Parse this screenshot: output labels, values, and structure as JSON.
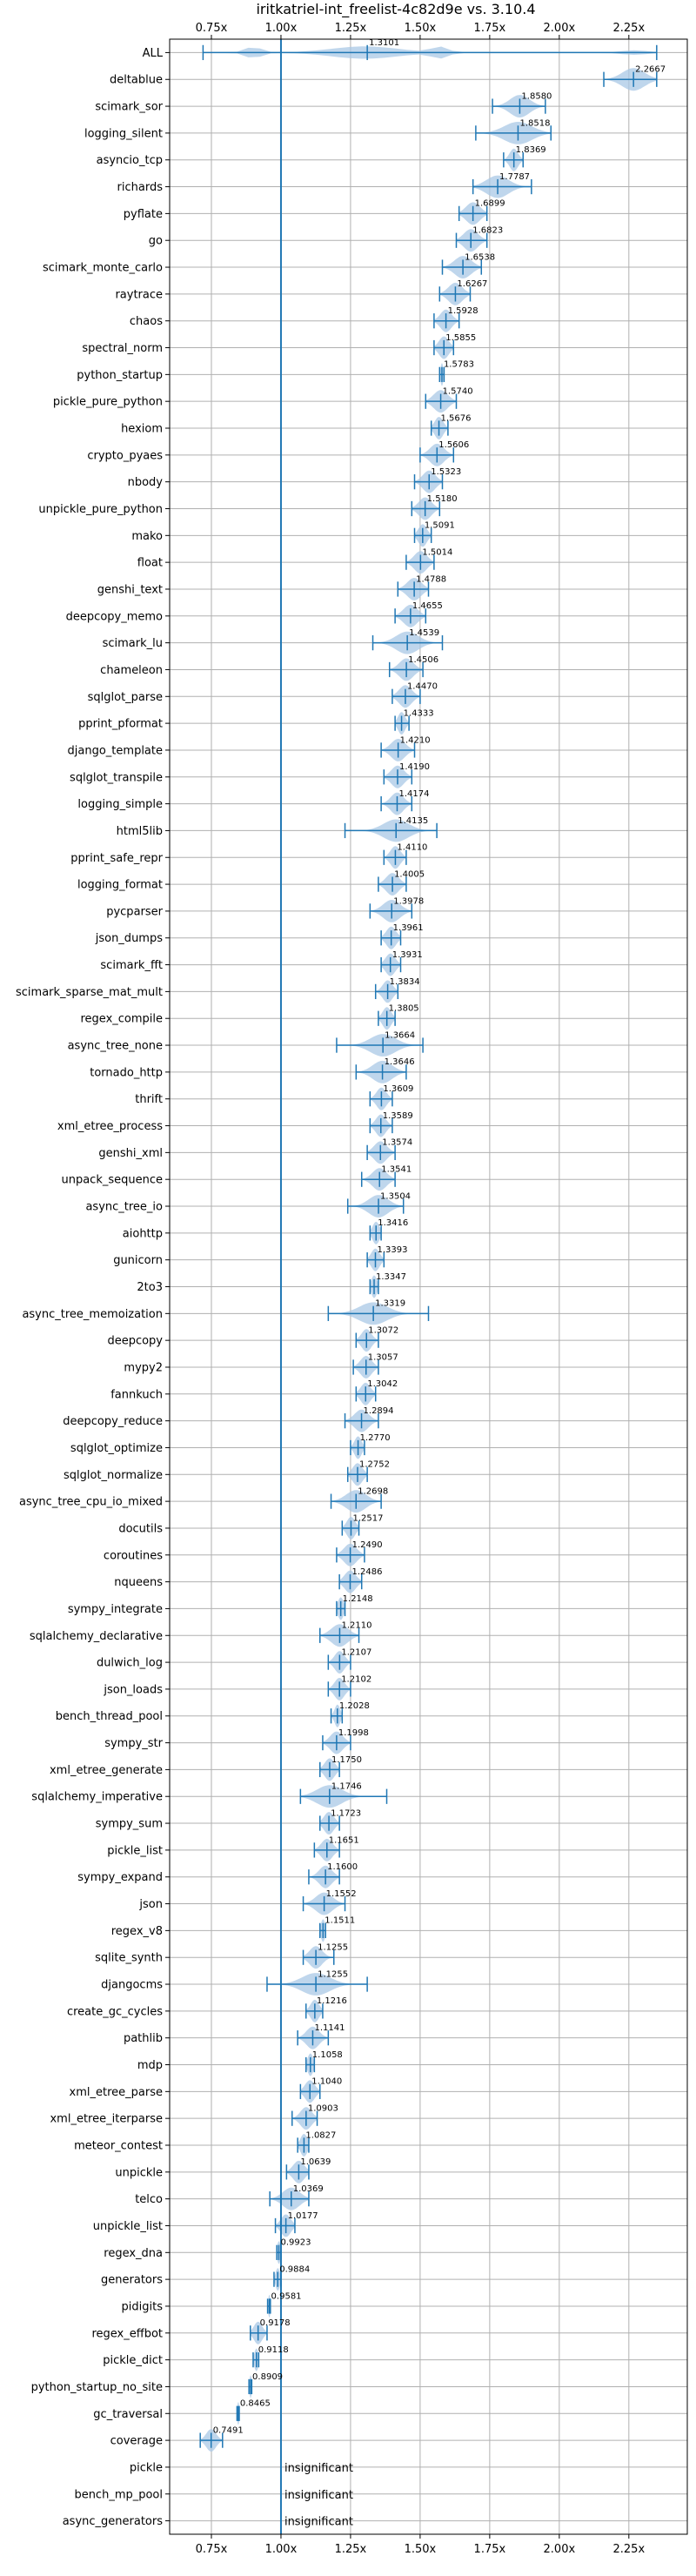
{
  "chart_data": {
    "type": "violin",
    "title": "iritkatriel-int_freelist-4c82d9e vs. 3.10.4",
    "xlabel": "",
    "ylabel": "",
    "xlim": [
      0.6,
      2.46
    ],
    "x_ticks": [
      0.75,
      1.0,
      1.25,
      1.5,
      1.75,
      2.0,
      2.25
    ],
    "x_tick_labels": [
      "0.75x",
      "1.00x",
      "1.25x",
      "1.50x",
      "1.75x",
      "2.00x",
      "2.25x"
    ],
    "reference_line": 1.0,
    "grid": true,
    "colors": {
      "violin": "#aac8e6",
      "errorbar": "#1f77b4",
      "reference": "#1f77b4",
      "grid": "#b0b0b0"
    },
    "benchmarks": [
      {
        "name": "ALL",
        "label": "1.3101",
        "value": 1.3101,
        "min": 0.72,
        "max": 2.35,
        "spread": 0.25
      },
      {
        "name": "deltablue",
        "label": "2.2667",
        "value": 2.2667,
        "min": 2.16,
        "max": 2.35,
        "spread": 0.08
      },
      {
        "name": "scimark_sor",
        "label": "1.8580",
        "value": 1.858,
        "min": 1.76,
        "max": 1.95,
        "spread": 0.07
      },
      {
        "name": "logging_silent",
        "label": "1.8518",
        "value": 1.8518,
        "min": 1.7,
        "max": 1.97,
        "spread": 0.1
      },
      {
        "name": "asyncio_tcp",
        "label": "1.8369",
        "value": 1.8369,
        "min": 1.8,
        "max": 1.87,
        "spread": 0.03
      },
      {
        "name": "richards",
        "label": "1.7787",
        "value": 1.7787,
        "min": 1.69,
        "max": 1.9,
        "spread": 0.08
      },
      {
        "name": "pyflate",
        "label": "1.6899",
        "value": 1.6899,
        "min": 1.64,
        "max": 1.74,
        "spread": 0.05
      },
      {
        "name": "go",
        "label": "1.6823",
        "value": 1.6823,
        "min": 1.63,
        "max": 1.74,
        "spread": 0.05
      },
      {
        "name": "scimark_monte_carlo",
        "label": "1.6538",
        "value": 1.6538,
        "min": 1.58,
        "max": 1.72,
        "spread": 0.06
      },
      {
        "name": "raytrace",
        "label": "1.6267",
        "value": 1.6267,
        "min": 1.57,
        "max": 1.68,
        "spread": 0.05
      },
      {
        "name": "chaos",
        "label": "1.5928",
        "value": 1.5928,
        "min": 1.55,
        "max": 1.64,
        "spread": 0.04
      },
      {
        "name": "spectral_norm",
        "label": "1.5855",
        "value": 1.5855,
        "min": 1.55,
        "max": 1.62,
        "spread": 0.035
      },
      {
        "name": "python_startup",
        "label": "1.5783",
        "value": 1.5783,
        "min": 1.57,
        "max": 1.586,
        "spread": 0.01
      },
      {
        "name": "pickle_pure_python",
        "label": "1.5740",
        "value": 1.574,
        "min": 1.52,
        "max": 1.63,
        "spread": 0.05
      },
      {
        "name": "hexiom",
        "label": "1.5676",
        "value": 1.5676,
        "min": 1.54,
        "max": 1.6,
        "spread": 0.03
      },
      {
        "name": "crypto_pyaes",
        "label": "1.5606",
        "value": 1.5606,
        "min": 1.5,
        "max": 1.62,
        "spread": 0.05
      },
      {
        "name": "nbody",
        "label": "1.5323",
        "value": 1.5323,
        "min": 1.48,
        "max": 1.58,
        "spread": 0.045
      },
      {
        "name": "unpickle_pure_python",
        "label": "1.5180",
        "value": 1.518,
        "min": 1.47,
        "max": 1.57,
        "spread": 0.045
      },
      {
        "name": "mako",
        "label": "1.5091",
        "value": 1.5091,
        "min": 1.48,
        "max": 1.54,
        "spread": 0.03
      },
      {
        "name": "float",
        "label": "1.5014",
        "value": 1.5014,
        "min": 1.45,
        "max": 1.55,
        "spread": 0.045
      },
      {
        "name": "genshi_text",
        "label": "1.4788",
        "value": 1.4788,
        "min": 1.42,
        "max": 1.53,
        "spread": 0.05
      },
      {
        "name": "deepcopy_memo",
        "label": "1.4655",
        "value": 1.4655,
        "min": 1.41,
        "max": 1.52,
        "spread": 0.05
      },
      {
        "name": "scimark_lu",
        "label": "1.4539",
        "value": 1.4539,
        "min": 1.33,
        "max": 1.58,
        "spread": 0.08
      },
      {
        "name": "chameleon",
        "label": "1.4506",
        "value": 1.4506,
        "min": 1.39,
        "max": 1.51,
        "spread": 0.05
      },
      {
        "name": "sqlglot_parse",
        "label": "1.4470",
        "value": 1.447,
        "min": 1.4,
        "max": 1.5,
        "spread": 0.045
      },
      {
        "name": "pprint_pformat",
        "label": "1.4333",
        "value": 1.4333,
        "min": 1.41,
        "max": 1.46,
        "spread": 0.025
      },
      {
        "name": "django_template",
        "label": "1.4210",
        "value": 1.421,
        "min": 1.36,
        "max": 1.48,
        "spread": 0.05
      },
      {
        "name": "sqlglot_transpile",
        "label": "1.4190",
        "value": 1.419,
        "min": 1.37,
        "max": 1.47,
        "spread": 0.045
      },
      {
        "name": "logging_simple",
        "label": "1.4174",
        "value": 1.4174,
        "min": 1.36,
        "max": 1.47,
        "spread": 0.045
      },
      {
        "name": "html5lib",
        "label": "1.4135",
        "value": 1.4135,
        "min": 1.23,
        "max": 1.56,
        "spread": 0.09
      },
      {
        "name": "pprint_safe_repr",
        "label": "1.4110",
        "value": 1.411,
        "min": 1.37,
        "max": 1.45,
        "spread": 0.035
      },
      {
        "name": "logging_format",
        "label": "1.4005",
        "value": 1.4005,
        "min": 1.35,
        "max": 1.45,
        "spread": 0.045
      },
      {
        "name": "pycparser",
        "label": "1.3978",
        "value": 1.3978,
        "min": 1.32,
        "max": 1.47,
        "spread": 0.06
      },
      {
        "name": "json_dumps",
        "label": "1.3961",
        "value": 1.3961,
        "min": 1.36,
        "max": 1.43,
        "spread": 0.035
      },
      {
        "name": "scimark_fft",
        "label": "1.3931",
        "value": 1.3931,
        "min": 1.36,
        "max": 1.43,
        "spread": 0.035
      },
      {
        "name": "scimark_sparse_mat_mult",
        "label": "1.3834",
        "value": 1.3834,
        "min": 1.34,
        "max": 1.42,
        "spread": 0.035
      },
      {
        "name": "regex_compile",
        "label": "1.3805",
        "value": 1.3805,
        "min": 1.35,
        "max": 1.41,
        "spread": 0.03
      },
      {
        "name": "async_tree_none",
        "label": "1.3664",
        "value": 1.3664,
        "min": 1.2,
        "max": 1.51,
        "spread": 0.09
      },
      {
        "name": "tornado_http",
        "label": "1.3646",
        "value": 1.3646,
        "min": 1.27,
        "max": 1.45,
        "spread": 0.07
      },
      {
        "name": "thrift",
        "label": "1.3609",
        "value": 1.3609,
        "min": 1.32,
        "max": 1.4,
        "spread": 0.035
      },
      {
        "name": "xml_etree_process",
        "label": "1.3589",
        "value": 1.3589,
        "min": 1.32,
        "max": 1.4,
        "spread": 0.035
      },
      {
        "name": "genshi_xml",
        "label": "1.3574",
        "value": 1.3574,
        "min": 1.31,
        "max": 1.41,
        "spread": 0.045
      },
      {
        "name": "unpack_sequence",
        "label": "1.3541",
        "value": 1.3541,
        "min": 1.29,
        "max": 1.41,
        "spread": 0.05
      },
      {
        "name": "async_tree_io",
        "label": "1.3504",
        "value": 1.3504,
        "min": 1.24,
        "max": 1.44,
        "spread": 0.07
      },
      {
        "name": "aiohttp",
        "label": "1.3416",
        "value": 1.3416,
        "min": 1.32,
        "max": 1.36,
        "spread": 0.025
      },
      {
        "name": "gunicorn",
        "label": "1.3393",
        "value": 1.3393,
        "min": 1.31,
        "max": 1.37,
        "spread": 0.03
      },
      {
        "name": "2to3",
        "label": "1.3347",
        "value": 1.3347,
        "min": 1.32,
        "max": 1.35,
        "spread": 0.02
      },
      {
        "name": "async_tree_memoization",
        "label": "1.3319",
        "value": 1.3319,
        "min": 1.17,
        "max": 1.53,
        "spread": 0.1
      },
      {
        "name": "deepcopy",
        "label": "1.3072",
        "value": 1.3072,
        "min": 1.27,
        "max": 1.35,
        "spread": 0.035
      },
      {
        "name": "mypy2",
        "label": "1.3057",
        "value": 1.3057,
        "min": 1.26,
        "max": 1.35,
        "spread": 0.04
      },
      {
        "name": "fannkuch",
        "label": "1.3042",
        "value": 1.3042,
        "min": 1.27,
        "max": 1.34,
        "spread": 0.035
      },
      {
        "name": "deepcopy_reduce",
        "label": "1.2894",
        "value": 1.2894,
        "min": 1.23,
        "max": 1.35,
        "spread": 0.05
      },
      {
        "name": "sqlglot_optimize",
        "label": "1.2770",
        "value": 1.277,
        "min": 1.25,
        "max": 1.3,
        "spread": 0.025
      },
      {
        "name": "sqlglot_normalize",
        "label": "1.2752",
        "value": 1.2752,
        "min": 1.24,
        "max": 1.31,
        "spread": 0.035
      },
      {
        "name": "async_tree_cpu_io_mixed",
        "label": "1.2698",
        "value": 1.2698,
        "min": 1.18,
        "max": 1.36,
        "spread": 0.07
      },
      {
        "name": "docutils",
        "label": "1.2517",
        "value": 1.2517,
        "min": 1.22,
        "max": 1.28,
        "spread": 0.03
      },
      {
        "name": "coroutines",
        "label": "1.2490",
        "value": 1.249,
        "min": 1.2,
        "max": 1.3,
        "spread": 0.045
      },
      {
        "name": "nqueens",
        "label": "1.2486",
        "value": 1.2486,
        "min": 1.21,
        "max": 1.29,
        "spread": 0.04
      },
      {
        "name": "sympy_integrate",
        "label": "1.2148",
        "value": 1.2148,
        "min": 1.2,
        "max": 1.23,
        "spread": 0.02
      },
      {
        "name": "sqlalchemy_declarative",
        "label": "1.2110",
        "value": 1.211,
        "min": 1.14,
        "max": 1.28,
        "spread": 0.06
      },
      {
        "name": "dulwich_log",
        "label": "1.2107",
        "value": 1.2107,
        "min": 1.17,
        "max": 1.25,
        "spread": 0.035
      },
      {
        "name": "json_loads",
        "label": "1.2102",
        "value": 1.2102,
        "min": 1.17,
        "max": 1.25,
        "spread": 0.035
      },
      {
        "name": "bench_thread_pool",
        "label": "1.2028",
        "value": 1.2028,
        "min": 1.18,
        "max": 1.22,
        "spread": 0.02
      },
      {
        "name": "sympy_str",
        "label": "1.1998",
        "value": 1.1998,
        "min": 1.15,
        "max": 1.25,
        "spread": 0.045
      },
      {
        "name": "xml_etree_generate",
        "label": "1.1750",
        "value": 1.175,
        "min": 1.14,
        "max": 1.21,
        "spread": 0.035
      },
      {
        "name": "sqlalchemy_imperative",
        "label": "1.1746",
        "value": 1.1746,
        "min": 1.07,
        "max": 1.38,
        "spread": 0.09
      },
      {
        "name": "sympy_sum",
        "label": "1.1723",
        "value": 1.1723,
        "min": 1.14,
        "max": 1.21,
        "spread": 0.035
      },
      {
        "name": "pickle_list",
        "label": "1.1651",
        "value": 1.1651,
        "min": 1.12,
        "max": 1.21,
        "spread": 0.04
      },
      {
        "name": "sympy_expand",
        "label": "1.1600",
        "value": 1.16,
        "min": 1.1,
        "max": 1.21,
        "spread": 0.045
      },
      {
        "name": "json",
        "label": "1.1552",
        "value": 1.1552,
        "min": 1.08,
        "max": 1.23,
        "spread": 0.06
      },
      {
        "name": "regex_v8",
        "label": "1.1511",
        "value": 1.1511,
        "min": 1.14,
        "max": 1.16,
        "spread": 0.015
      },
      {
        "name": "sqlite_synth",
        "label": "1.1255",
        "value": 1.1255,
        "min": 1.08,
        "max": 1.19,
        "spread": 0.045
      },
      {
        "name": "djangocms",
        "label": "1.1255",
        "value": 1.1255,
        "min": 0.95,
        "max": 1.31,
        "spread": 0.1
      },
      {
        "name": "create_gc_cycles",
        "label": "1.1216",
        "value": 1.1216,
        "min": 1.09,
        "max": 1.15,
        "spread": 0.03
      },
      {
        "name": "pathlib",
        "label": "1.1141",
        "value": 1.1141,
        "min": 1.06,
        "max": 1.17,
        "spread": 0.045
      },
      {
        "name": "mdp",
        "label": "1.1058",
        "value": 1.1058,
        "min": 1.09,
        "max": 1.12,
        "spread": 0.02
      },
      {
        "name": "xml_etree_parse",
        "label": "1.1040",
        "value": 1.104,
        "min": 1.07,
        "max": 1.14,
        "spread": 0.035
      },
      {
        "name": "xml_etree_iterparse",
        "label": "1.0903",
        "value": 1.0903,
        "min": 1.04,
        "max": 1.13,
        "spread": 0.04
      },
      {
        "name": "meteor_contest",
        "label": "1.0827",
        "value": 1.0827,
        "min": 1.06,
        "max": 1.1,
        "spread": 0.025
      },
      {
        "name": "unpickle",
        "label": "1.0639",
        "value": 1.0639,
        "min": 1.02,
        "max": 1.1,
        "spread": 0.04
      },
      {
        "name": "telco",
        "label": "1.0369",
        "value": 1.0369,
        "min": 0.96,
        "max": 1.1,
        "spread": 0.06
      },
      {
        "name": "unpickle_list",
        "label": "1.0177",
        "value": 1.0177,
        "min": 0.98,
        "max": 1.05,
        "spread": 0.035
      },
      {
        "name": "regex_dna",
        "label": "0.9923",
        "value": 0.9923,
        "min": 0.985,
        "max": 1.0,
        "spread": 0.012
      },
      {
        "name": "generators",
        "label": "0.9884",
        "value": 0.9884,
        "min": 0.975,
        "max": 1.0,
        "spread": 0.015
      },
      {
        "name": "pidigits",
        "label": "0.9581",
        "value": 0.9581,
        "min": 0.952,
        "max": 0.962,
        "spread": 0.008
      },
      {
        "name": "regex_effbot",
        "label": "0.9178",
        "value": 0.9178,
        "min": 0.89,
        "max": 0.95,
        "spread": 0.03
      },
      {
        "name": "pickle_dict",
        "label": "0.9118",
        "value": 0.9118,
        "min": 0.9,
        "max": 0.92,
        "spread": 0.015
      },
      {
        "name": "python_startup_no_site",
        "label": "0.8909",
        "value": 0.8909,
        "min": 0.885,
        "max": 0.895,
        "spread": 0.008
      },
      {
        "name": "gc_traversal",
        "label": "0.8465",
        "value": 0.8465,
        "min": 0.842,
        "max": 0.85,
        "spread": 0.008
      },
      {
        "name": "coverage",
        "label": "0.7491",
        "value": 0.7491,
        "min": 0.71,
        "max": 0.79,
        "spread": 0.035
      },
      {
        "name": "pickle",
        "label": "insignificant",
        "value": null,
        "min": null,
        "max": null,
        "spread": 0
      },
      {
        "name": "bench_mp_pool",
        "label": "insignificant",
        "value": null,
        "min": null,
        "max": null,
        "spread": 0
      },
      {
        "name": "async_generators",
        "label": "insignificant",
        "value": null,
        "min": null,
        "max": null,
        "spread": 0
      }
    ]
  }
}
